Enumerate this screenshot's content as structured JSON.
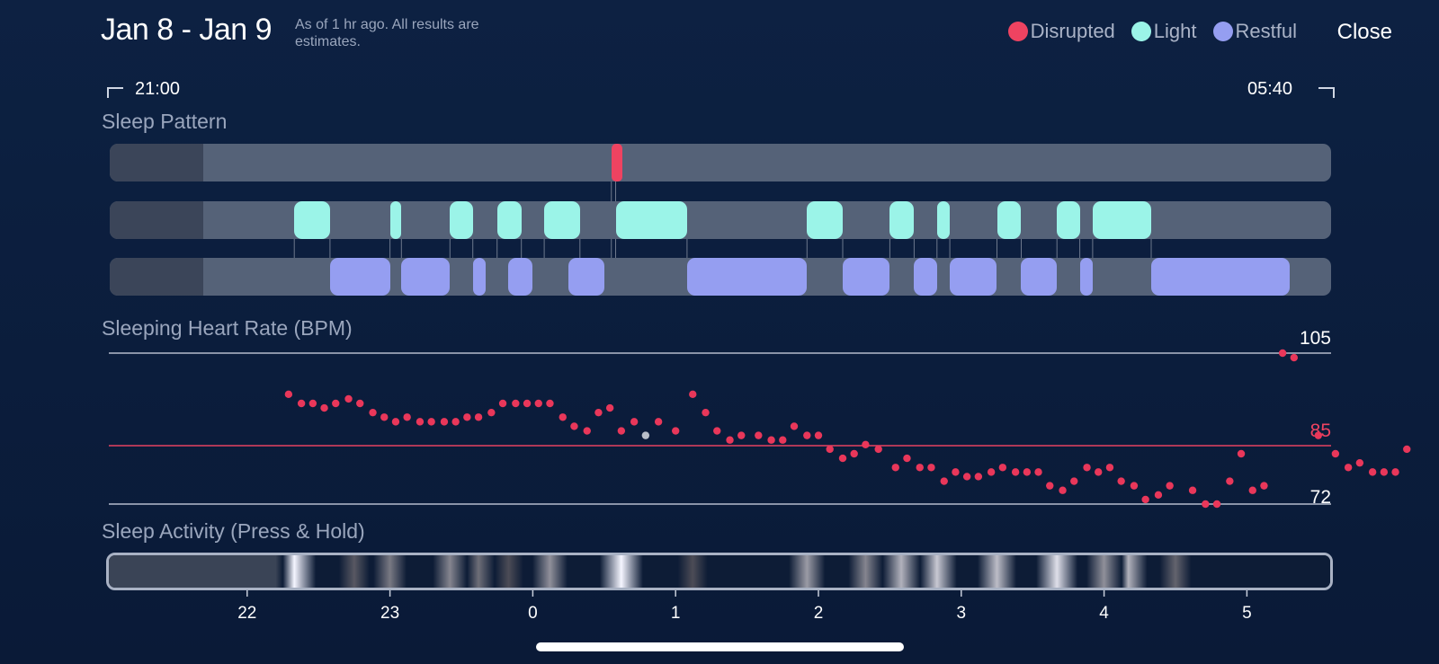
{
  "header": {
    "date_range": "Jan 8 - Jan 9",
    "subtitle": "As of 1 hr ago. All results are estimates.",
    "close_label": "Close"
  },
  "legend": [
    {
      "label": "Disrupted",
      "color": "#ee4361"
    },
    {
      "label": "Light",
      "color": "#9bf4e8"
    },
    {
      "label": "Restful",
      "color": "#959ef1"
    }
  ],
  "time_range": {
    "start": "21:00",
    "end": "05:40"
  },
  "sleep_pattern": {
    "label": "Sleep Pattern",
    "disrupted": [
      [
        0.55,
        0.58
      ]
    ],
    "light": [
      [
        22.33,
        22.58
      ],
      [
        23.0,
        23.08
      ],
      [
        23.42,
        23.58
      ],
      [
        23.75,
        23.92
      ],
      [
        24.08,
        24.33
      ],
      [
        24.58,
        25.08
      ],
      [
        25.92,
        26.17
      ],
      [
        26.5,
        26.67
      ],
      [
        26.83,
        26.92
      ],
      [
        27.25,
        27.42
      ],
      [
        27.67,
        27.83
      ],
      [
        27.92,
        28.33
      ]
    ],
    "restful": [
      [
        22.58,
        23.0
      ],
      [
        23.08,
        23.42
      ],
      [
        23.58,
        23.67
      ],
      [
        23.83,
        24.0
      ],
      [
        24.25,
        24.5
      ],
      [
        25.08,
        25.92
      ],
      [
        26.17,
        26.5
      ],
      [
        26.67,
        26.83
      ],
      [
        26.92,
        27.25
      ],
      [
        27.42,
        27.67
      ],
      [
        27.83,
        27.92
      ],
      [
        28.33,
        29.3
      ]
    ]
  },
  "heart_rate": {
    "label": "Sleeping Heart Rate (BPM)",
    "max_label": "105",
    "avg_label": "85",
    "min_label": "72",
    "max": 105,
    "avg": 85,
    "min": 72,
    "points": [
      [
        22.29,
        96
      ],
      [
        22.38,
        94
      ],
      [
        22.46,
        94
      ],
      [
        22.54,
        93
      ],
      [
        22.62,
        94
      ],
      [
        22.71,
        95
      ],
      [
        22.79,
        94
      ],
      [
        22.88,
        92
      ],
      [
        22.96,
        91
      ],
      [
        23.04,
        90
      ],
      [
        23.12,
        91
      ],
      [
        23.21,
        90
      ],
      [
        23.29,
        90
      ],
      [
        23.38,
        90
      ],
      [
        23.46,
        90
      ],
      [
        23.54,
        91
      ],
      [
        23.62,
        91
      ],
      [
        23.71,
        92
      ],
      [
        23.79,
        94
      ],
      [
        23.88,
        94
      ],
      [
        23.96,
        94
      ],
      [
        24.04,
        94
      ],
      [
        24.12,
        94
      ],
      [
        24.21,
        91
      ],
      [
        24.29,
        89
      ],
      [
        24.38,
        88
      ],
      [
        24.46,
        92
      ],
      [
        24.54,
        93
      ],
      [
        24.62,
        88
      ],
      [
        24.71,
        90
      ],
      [
        24.88,
        90
      ],
      [
        25.0,
        88
      ],
      [
        25.12,
        96
      ],
      [
        25.21,
        92
      ],
      [
        25.29,
        88
      ],
      [
        25.38,
        86
      ],
      [
        25.46,
        87
      ],
      [
        25.58,
        87
      ],
      [
        25.67,
        86
      ],
      [
        25.75,
        86
      ],
      [
        25.83,
        89
      ],
      [
        25.92,
        87
      ],
      [
        26.0,
        87
      ],
      [
        26.08,
        84
      ],
      [
        26.17,
        82
      ],
      [
        26.25,
        83
      ],
      [
        26.33,
        85
      ],
      [
        26.42,
        84
      ],
      [
        26.54,
        80
      ],
      [
        26.62,
        82
      ],
      [
        26.71,
        80
      ],
      [
        26.79,
        80
      ],
      [
        26.88,
        77
      ],
      [
        26.96,
        79
      ],
      [
        27.04,
        78
      ],
      [
        27.12,
        78
      ],
      [
        27.21,
        79
      ],
      [
        27.29,
        80
      ],
      [
        27.38,
        79
      ],
      [
        27.46,
        79
      ],
      [
        27.54,
        79
      ],
      [
        27.62,
        76
      ],
      [
        27.71,
        75
      ],
      [
        27.79,
        77
      ],
      [
        27.88,
        80
      ],
      [
        27.96,
        79
      ],
      [
        28.04,
        80
      ],
      [
        28.12,
        77
      ],
      [
        28.21,
        76
      ],
      [
        28.29,
        73
      ],
      [
        28.38,
        74
      ],
      [
        28.46,
        76
      ],
      [
        28.62,
        75
      ],
      [
        28.71,
        72
      ],
      [
        28.79,
        72
      ],
      [
        28.88,
        77
      ],
      [
        28.96,
        83
      ],
      [
        29.04,
        75
      ],
      [
        29.12,
        76
      ],
      [
        29.25,
        105
      ],
      [
        29.33,
        104
      ],
      [
        29.5,
        87
      ],
      [
        29.62,
        83
      ],
      [
        29.71,
        80
      ],
      [
        29.79,
        81
      ],
      [
        29.88,
        79
      ],
      [
        29.96,
        79
      ],
      [
        30.04,
        79
      ],
      [
        30.12,
        84
      ]
    ],
    "neutral_points": [
      [
        24.79,
        87
      ]
    ]
  },
  "activity": {
    "label": "Sleep Activity (Press & Hold)",
    "bands": [
      [
        22.33,
        1.0
      ],
      [
        22.75,
        0.3
      ],
      [
        23.0,
        0.45
      ],
      [
        23.42,
        0.5
      ],
      [
        23.62,
        0.4
      ],
      [
        23.83,
        0.25
      ],
      [
        24.12,
        0.55
      ],
      [
        24.62,
        1.0
      ],
      [
        25.12,
        0.25
      ],
      [
        25.92,
        0.6
      ],
      [
        26.33,
        0.5
      ],
      [
        26.58,
        0.7
      ],
      [
        26.83,
        0.8
      ],
      [
        27.25,
        0.75
      ],
      [
        27.67,
        0.9
      ],
      [
        28.0,
        0.55
      ],
      [
        28.17,
        0.7
      ],
      [
        28.5,
        0.35
      ]
    ]
  },
  "time_axis": {
    "ticks": [
      {
        "h": 22,
        "label": "22"
      },
      {
        "h": 23,
        "label": "23"
      },
      {
        "h": 24,
        "label": "0"
      },
      {
        "h": 25,
        "label": "1"
      },
      {
        "h": 26,
        "label": "2"
      },
      {
        "h": 27,
        "label": "3"
      },
      {
        "h": 28,
        "label": "4"
      },
      {
        "h": 29,
        "label": "5"
      }
    ]
  }
}
